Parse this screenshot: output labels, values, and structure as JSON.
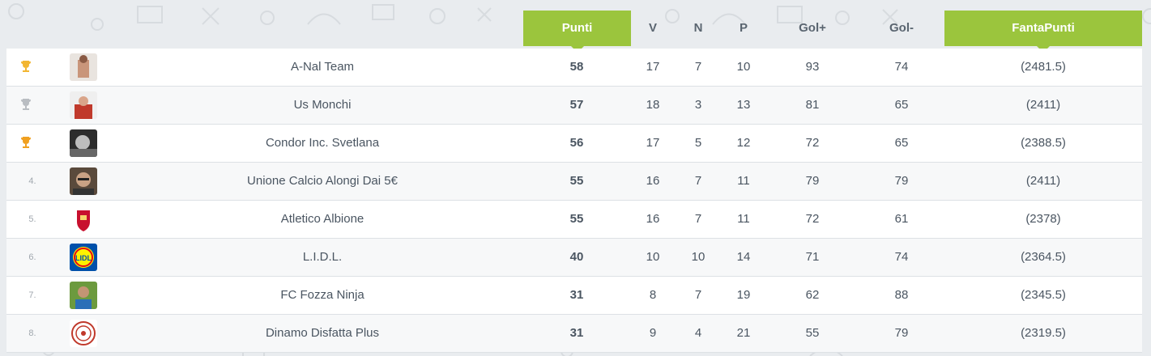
{
  "table": {
    "headers": {
      "punti": "Punti",
      "v": "V",
      "n": "N",
      "p": "P",
      "gol_plus": "Gol+",
      "gol_minus": "Gol-",
      "fantapunti": "FantaPunti"
    },
    "accent_color": "#9bc53d",
    "rows": [
      {
        "pos": "",
        "trophy": "gold-trophy-icon",
        "avatar": "avatar-shirtless",
        "team": "A-Nal Team",
        "points": "58",
        "v": "17",
        "n": "7",
        "p": "10",
        "gf": "93",
        "ga": "74",
        "fp": "(2481.5)"
      },
      {
        "pos": "",
        "trophy": "silver-trophy-icon",
        "avatar": "avatar-red-shirt",
        "team": "Us Monchi",
        "points": "57",
        "v": "18",
        "n": "3",
        "p": "13",
        "gf": "81",
        "ga": "65",
        "fp": "(2411)"
      },
      {
        "pos": "",
        "trophy": "bronze-trophy-icon",
        "avatar": "avatar-bw-photo",
        "team": "Condor Inc. Svetlana",
        "points": "56",
        "v": "17",
        "n": "5",
        "p": "12",
        "gf": "72",
        "ga": "65",
        "fp": "(2388.5)"
      },
      {
        "pos": "4.",
        "trophy": "",
        "avatar": "avatar-man-glasses",
        "team": "Unione Calcio Alongi Dai 5€",
        "points": "55",
        "v": "16",
        "n": "7",
        "p": "11",
        "gf": "79",
        "ga": "79",
        "fp": "(2411)"
      },
      {
        "pos": "5.",
        "trophy": "",
        "avatar": "avatar-liverpool-crest",
        "team": "Atletico Albione",
        "points": "55",
        "v": "16",
        "n": "7",
        "p": "11",
        "gf": "72",
        "ga": "61",
        "fp": "(2378)"
      },
      {
        "pos": "6.",
        "trophy": "",
        "avatar": "avatar-lidl-logo",
        "team": "L.I.D.L.",
        "points": "40",
        "v": "10",
        "n": "10",
        "p": "14",
        "gf": "71",
        "ga": "74",
        "fp": "(2364.5)"
      },
      {
        "pos": "7.",
        "trophy": "",
        "avatar": "avatar-footballer",
        "team": "FC Fozza Ninja",
        "points": "31",
        "v": "8",
        "n": "7",
        "p": "19",
        "gf": "62",
        "ga": "88",
        "fp": "(2345.5)"
      },
      {
        "pos": "8.",
        "trophy": "",
        "avatar": "avatar-biohazard-crest",
        "team": "Dinamo Disfatta Plus",
        "points": "31",
        "v": "9",
        "n": "4",
        "p": "21",
        "gf": "55",
        "ga": "79",
        "fp": "(2319.5)"
      }
    ]
  }
}
